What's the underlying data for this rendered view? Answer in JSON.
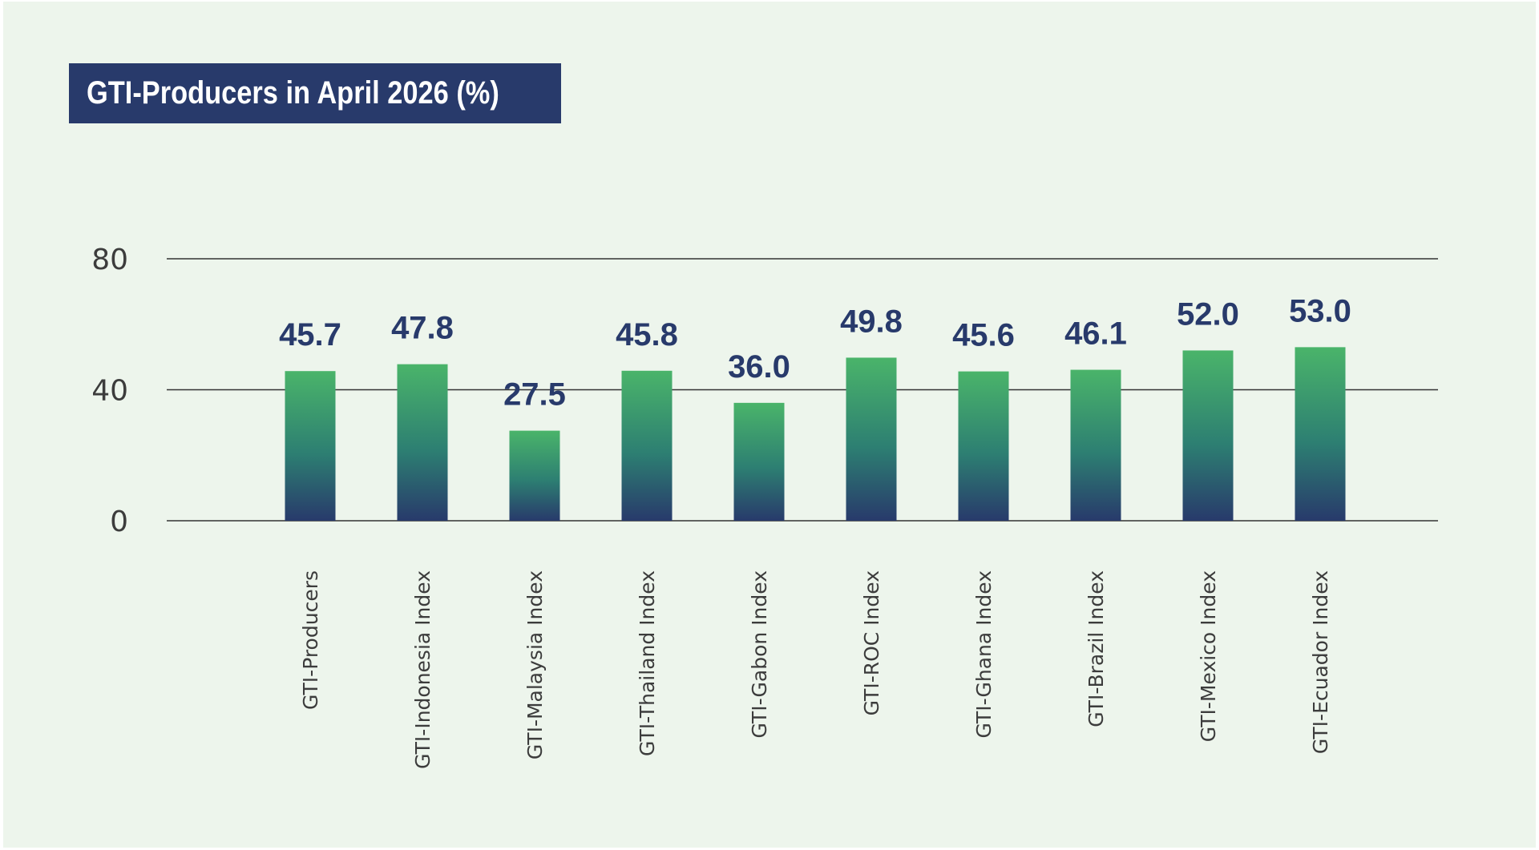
{
  "title": "GTI-Producers in April 2026 (%)",
  "colors": {
    "background": "#edf5ec",
    "title_bg": "#283a6b",
    "bar_top": "#4ab46a",
    "bar_mid": "#2d7f72",
    "bar_bottom": "#283a6b",
    "value_text": "#283a6b",
    "gridline": "#333333"
  },
  "chart_data": {
    "type": "bar",
    "title": "GTI-Producers in April 2026 (%)",
    "categories": [
      "GTI-Producers",
      "GTI-Indonesia Index",
      "GTI-Malaysia Index",
      "GTI-Thailand Index",
      "GTI-Gabon Index",
      "GTI-ROC Index",
      "GTI-Ghana Index",
      "GTI-Brazil Index",
      "GTI-Mexico Index",
      "GTI-Ecuador Index"
    ],
    "values": [
      45.7,
      47.8,
      27.5,
      45.8,
      36.0,
      49.8,
      45.6,
      46.1,
      52.0,
      53.0
    ],
    "value_labels": [
      "45.7",
      "47.8",
      "27.5",
      "45.8",
      "36.0",
      "49.8",
      "45.6",
      "46.1",
      "52.0",
      "53.0"
    ],
    "yticks": [
      "0",
      "40",
      "80"
    ],
    "ylim": [
      0,
      80
    ],
    "xlabel": "",
    "ylabel": "",
    "grid": true,
    "legend": "none"
  }
}
